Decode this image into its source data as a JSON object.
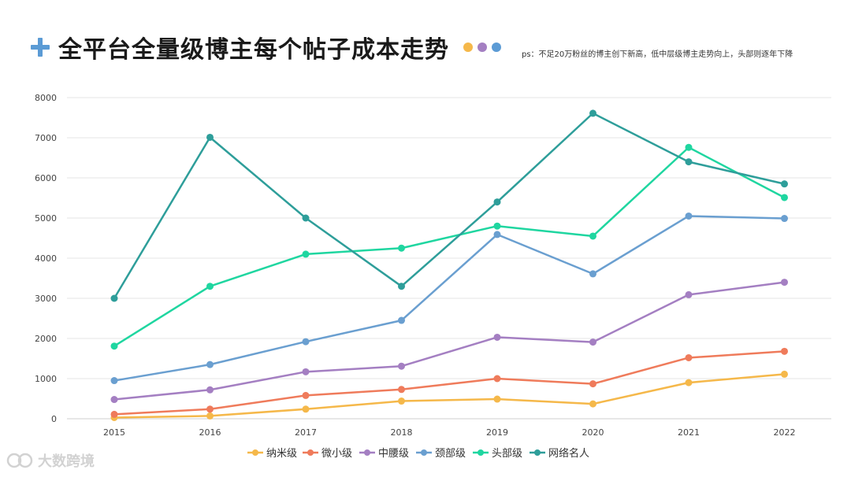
{
  "header": {
    "title": "全平台全量级博主每个帖子成本走势",
    "dot_colors": [
      "#f5b84a",
      "#a47fc2",
      "#5b9bd5"
    ],
    "note": "ps：不足20万粉丝的博主创下新高，低中层级博主走势向上，头部则逐年下降",
    "accent_color": "#5b9bd5"
  },
  "watermark": {
    "text": "大数跨境"
  },
  "chart_data": {
    "type": "line",
    "title": "全平台全量级博主每个帖子成本走势",
    "xlabel": "",
    "ylabel": "",
    "categories": [
      "2015",
      "2016",
      "2017",
      "2018",
      "2019",
      "2020",
      "2021",
      "2022"
    ],
    "ylim": [
      0,
      8000
    ],
    "yticks": [
      0,
      1000,
      2000,
      3000,
      4000,
      5000,
      6000,
      7000,
      8000
    ],
    "grid": true,
    "legend_position": "bottom",
    "series": [
      {
        "name": "纳米级",
        "color": "#f5b84a",
        "values": [
          30,
          70,
          240,
          440,
          490,
          370,
          900,
          1110
        ]
      },
      {
        "name": "微小级",
        "color": "#ef7b5b",
        "values": [
          110,
          240,
          580,
          730,
          1000,
          870,
          1520,
          1680
        ]
      },
      {
        "name": "中腰级",
        "color": "#a47fc2",
        "values": [
          480,
          720,
          1170,
          1310,
          2030,
          1910,
          3090,
          3400
        ]
      },
      {
        "name": "颈部级",
        "color": "#6a9fd0",
        "values": [
          950,
          1350,
          1920,
          2450,
          4590,
          3610,
          5050,
          4990
        ]
      },
      {
        "name": "头部级",
        "color": "#1fd6a0",
        "values": [
          1810,
          3300,
          4100,
          4250,
          4800,
          4550,
          6760,
          5510
        ]
      },
      {
        "name": "网络名人",
        "color": "#2e9e9a",
        "values": [
          3000,
          7010,
          5000,
          3300,
          5400,
          7610,
          6400,
          5850
        ]
      }
    ]
  }
}
